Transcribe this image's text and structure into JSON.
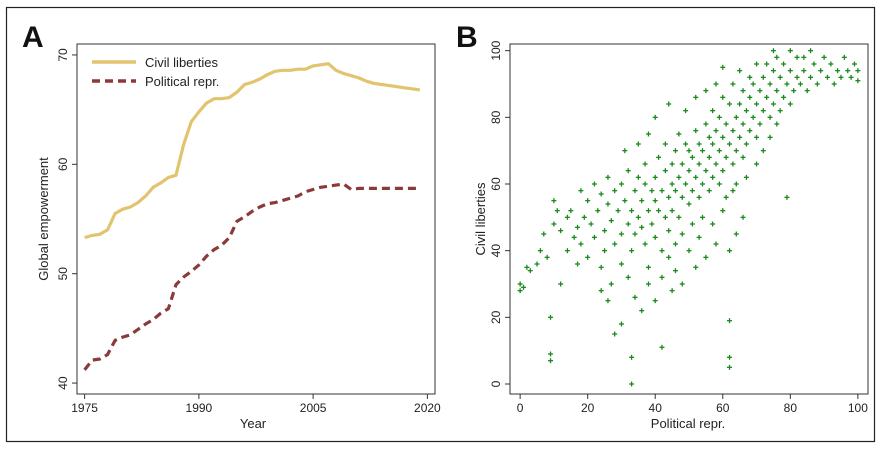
{
  "chart_data": [
    {
      "type": "line",
      "panel_label": "A",
      "xlabel": "Year",
      "ylabel": "Global empowerment",
      "xlim": [
        1974,
        2021
      ],
      "ylim": [
        39,
        71
      ],
      "xticks": [
        1975,
        1990,
        2005,
        2020
      ],
      "yticks": [
        40,
        50,
        60,
        70
      ],
      "grid": false,
      "legend_position": "top-left inside",
      "x": [
        1975,
        1976,
        1977,
        1978,
        1979,
        1980,
        1981,
        1982,
        1983,
        1984,
        1985,
        1986,
        1987,
        1988,
        1989,
        1990,
        1991,
        1992,
        1993,
        1994,
        1995,
        1996,
        1997,
        1998,
        1999,
        2000,
        2001,
        2002,
        2003,
        2004,
        2005,
        2006,
        2007,
        2008,
        2009,
        2010,
        2011,
        2012,
        2013,
        2014,
        2015,
        2016,
        2017,
        2018,
        2019
      ],
      "series": [
        {
          "name": "Civil liberties",
          "color": "#e2c36e",
          "style": "solid",
          "values": [
            53.3,
            53.5,
            53.6,
            54.0,
            55.5,
            55.9,
            56.1,
            56.5,
            57.1,
            57.9,
            58.3,
            58.8,
            59.0,
            61.8,
            63.9,
            64.8,
            65.6,
            66.0,
            66.0,
            66.1,
            66.6,
            67.3,
            67.5,
            67.8,
            68.2,
            68.5,
            68.6,
            68.6,
            68.7,
            68.7,
            69.0,
            69.1,
            69.2,
            68.6,
            68.3,
            68.1,
            67.9,
            67.6,
            67.4,
            67.3,
            67.2,
            67.1,
            67.0,
            66.9,
            66.8
          ]
        },
        {
          "name": "Political repr.",
          "color": "#8b3a3a",
          "style": "dashed",
          "values": [
            41.2,
            42.1,
            42.2,
            42.6,
            43.9,
            44.2,
            44.4,
            44.9,
            45.4,
            45.8,
            46.4,
            46.8,
            49.0,
            49.7,
            50.2,
            50.8,
            51.6,
            52.2,
            52.6,
            53.3,
            54.8,
            55.2,
            55.7,
            56.1,
            56.4,
            56.5,
            56.7,
            56.9,
            57.1,
            57.5,
            57.7,
            57.9,
            58.0,
            58.1,
            58.2,
            57.7,
            57.8,
            57.8,
            57.8,
            57.8,
            57.8,
            57.8,
            57.8,
            57.8,
            57.8
          ]
        }
      ]
    },
    {
      "type": "scatter",
      "panel_label": "B",
      "xlabel": "Political repr.",
      "ylabel": "Civil liberties",
      "xlim": [
        -3,
        103
      ],
      "ylim": [
        -3,
        102
      ],
      "xticks": [
        0,
        20,
        40,
        60,
        80,
        100
      ],
      "yticks": [
        0,
        20,
        40,
        60,
        80,
        100
      ],
      "grid": false,
      "marker": "+",
      "color": "#1a8a1a",
      "series": [
        {
          "name": "",
          "points": [
            [
              0,
              30
            ],
            [
              0,
              28
            ],
            [
              1,
              29
            ],
            [
              2,
              35
            ],
            [
              3,
              34
            ],
            [
              5,
              36
            ],
            [
              7,
              45
            ],
            [
              6,
              40
            ],
            [
              8,
              38
            ],
            [
              9,
              20
            ],
            [
              9,
              9
            ],
            [
              9,
              7
            ],
            [
              10,
              48
            ],
            [
              10,
              55
            ],
            [
              11,
              52
            ],
            [
              12,
              46
            ],
            [
              12,
              30
            ],
            [
              14,
              40
            ],
            [
              14,
              50
            ],
            [
              15,
              52
            ],
            [
              16,
              44
            ],
            [
              17,
              36
            ],
            [
              17,
              47
            ],
            [
              18,
              42
            ],
            [
              18,
              58
            ],
            [
              19,
              50
            ],
            [
              20,
              38
            ],
            [
              20,
              55
            ],
            [
              21,
              48
            ],
            [
              22,
              44
            ],
            [
              22,
              60
            ],
            [
              23,
              52
            ],
            [
              24,
              35
            ],
            [
              24,
              57
            ],
            [
              25,
              46
            ],
            [
              25,
              40
            ],
            [
              26,
              62
            ],
            [
              26,
              54
            ],
            [
              27,
              49
            ],
            [
              27,
              30
            ],
            [
              28,
              42
            ],
            [
              28,
              58
            ],
            [
              29,
              52
            ],
            [
              30,
              45
            ],
            [
              30,
              36
            ],
            [
              30,
              60
            ],
            [
              31,
              55
            ],
            [
              31,
              70
            ],
            [
              32,
              48
            ],
            [
              32,
              64
            ],
            [
              33,
              52
            ],
            [
              33,
              40
            ],
            [
              33,
              8
            ],
            [
              33,
              0
            ],
            [
              34,
              58
            ],
            [
              34,
              45
            ],
            [
              35,
              62
            ],
            [
              35,
              50
            ],
            [
              35,
              72
            ],
            [
              36,
              55
            ],
            [
              36,
              47
            ],
            [
              37,
              42
            ],
            [
              37,
              60
            ],
            [
              37,
              66
            ],
            [
              38,
              52
            ],
            [
              38,
              35
            ],
            [
              38,
              75
            ],
            [
              39,
              58
            ],
            [
              39,
              48
            ],
            [
              40,
              62
            ],
            [
              40,
              44
            ],
            [
              40,
              55
            ],
            [
              40,
              80
            ],
            [
              41,
              52
            ],
            [
              41,
              68
            ],
            [
              42,
              58
            ],
            [
              42,
              40
            ],
            [
              42,
              11
            ],
            [
              43,
              64
            ],
            [
              43,
              50
            ],
            [
              43,
              72
            ],
            [
              44,
              56
            ],
            [
              44,
              46
            ],
            [
              44,
              84
            ],
            [
              45,
              60
            ],
            [
              45,
              66
            ],
            [
              45,
              52
            ],
            [
              46,
              70
            ],
            [
              46,
              42
            ],
            [
              46,
              58
            ],
            [
              47,
              62
            ],
            [
              47,
              75
            ],
            [
              47,
              50
            ],
            [
              48,
              66
            ],
            [
              48,
              56
            ],
            [
              48,
              45
            ],
            [
              49,
              60
            ],
            [
              49,
              72
            ],
            [
              49,
              82
            ],
            [
              50,
              64
            ],
            [
              50,
              54
            ],
            [
              50,
              70
            ],
            [
              51,
              68
            ],
            [
              51,
              58
            ],
            [
              51,
              48
            ],
            [
              52,
              62
            ],
            [
              52,
              76
            ],
            [
              52,
              86
            ],
            [
              53,
              66
            ],
            [
              53,
              56
            ],
            [
              53,
              72
            ],
            [
              54,
              70
            ],
            [
              54,
              60
            ],
            [
              54,
              50
            ],
            [
              55,
              64
            ],
            [
              55,
              78
            ],
            [
              55,
              88
            ],
            [
              56,
              68
            ],
            [
              56,
              58
            ],
            [
              56,
              74
            ],
            [
              57,
              72
            ],
            [
              57,
              62
            ],
            [
              57,
              82
            ],
            [
              58,
              66
            ],
            [
              58,
              76
            ],
            [
              58,
              90
            ],
            [
              59,
              70
            ],
            [
              59,
              60
            ],
            [
              59,
              80
            ],
            [
              60,
              74
            ],
            [
              60,
              64
            ],
            [
              60,
              86
            ],
            [
              60,
              95
            ],
            [
              61,
              68
            ],
            [
              61,
              78
            ],
            [
              61,
              56
            ],
            [
              62,
              72
            ],
            [
              62,
              84
            ],
            [
              62,
              19
            ],
            [
              62,
              8
            ],
            [
              62,
              5
            ],
            [
              63,
              76
            ],
            [
              63,
              66
            ],
            [
              63,
              90
            ],
            [
              64,
              80
            ],
            [
              64,
              70
            ],
            [
              64,
              60
            ],
            [
              65,
              84
            ],
            [
              65,
              74
            ],
            [
              65,
              94
            ],
            [
              66,
              78
            ],
            [
              66,
              68
            ],
            [
              66,
              88
            ],
            [
              67,
              82
            ],
            [
              67,
              72
            ],
            [
              68,
              86
            ],
            [
              68,
              76
            ],
            [
              68,
              92
            ],
            [
              69,
              80
            ],
            [
              69,
              90
            ],
            [
              70,
              84
            ],
            [
              70,
              74
            ],
            [
              70,
              96
            ],
            [
              71,
              88
            ],
            [
              71,
              78
            ],
            [
              72,
              82
            ],
            [
              72,
              92
            ],
            [
              73,
              86
            ],
            [
              73,
              96
            ],
            [
              74,
              90
            ],
            [
              74,
              80
            ],
            [
              75,
              84
            ],
            [
              75,
              94
            ],
            [
              76,
              88
            ],
            [
              76,
              98
            ],
            [
              77,
              92
            ],
            [
              77,
              82
            ],
            [
              78,
              86
            ],
            [
              78,
              96
            ],
            [
              79,
              90
            ],
            [
              79,
              56
            ],
            [
              80,
              94
            ],
            [
              80,
              84
            ],
            [
              81,
              88
            ],
            [
              82,
              92
            ],
            [
              82,
              98
            ],
            [
              83,
              90
            ],
            [
              84,
              94
            ],
            [
              85,
              88
            ],
            [
              86,
              92
            ],
            [
              86,
              100
            ],
            [
              87,
              96
            ],
            [
              88,
              90
            ],
            [
              89,
              94
            ],
            [
              90,
              98
            ],
            [
              91,
              92
            ],
            [
              92,
              96
            ],
            [
              93,
              90
            ],
            [
              94,
              94
            ],
            [
              95,
              92
            ],
            [
              96,
              98
            ],
            [
              97,
              94
            ],
            [
              98,
              92
            ],
            [
              99,
              96
            ],
            [
              100,
              94
            ],
            [
              100,
              91
            ],
            [
              75,
              100
            ],
            [
              80,
              100
            ],
            [
              84,
              98
            ],
            [
              62,
              40
            ],
            [
              64,
              45
            ],
            [
              66,
              50
            ],
            [
              58,
              42
            ],
            [
              55,
              38
            ],
            [
              52,
              35
            ],
            [
              48,
              30
            ],
            [
              45,
              28
            ],
            [
              42,
              32
            ],
            [
              40,
              25
            ],
            [
              36,
              22
            ],
            [
              30,
              18
            ],
            [
              28,
              15
            ],
            [
              26,
              25
            ],
            [
              24,
              28
            ],
            [
              50,
              40
            ],
            [
              53,
              44
            ],
            [
              57,
              48
            ],
            [
              60,
              52
            ],
            [
              63,
              58
            ],
            [
              67,
              62
            ],
            [
              70,
              66
            ],
            [
              72,
              70
            ],
            [
              74,
              74
            ],
            [
              76,
              78
            ],
            [
              44,
              38
            ],
            [
              46,
              34
            ],
            [
              38,
              30
            ],
            [
              34,
              26
            ],
            [
              32,
              32
            ]
          ]
        }
      ]
    }
  ]
}
